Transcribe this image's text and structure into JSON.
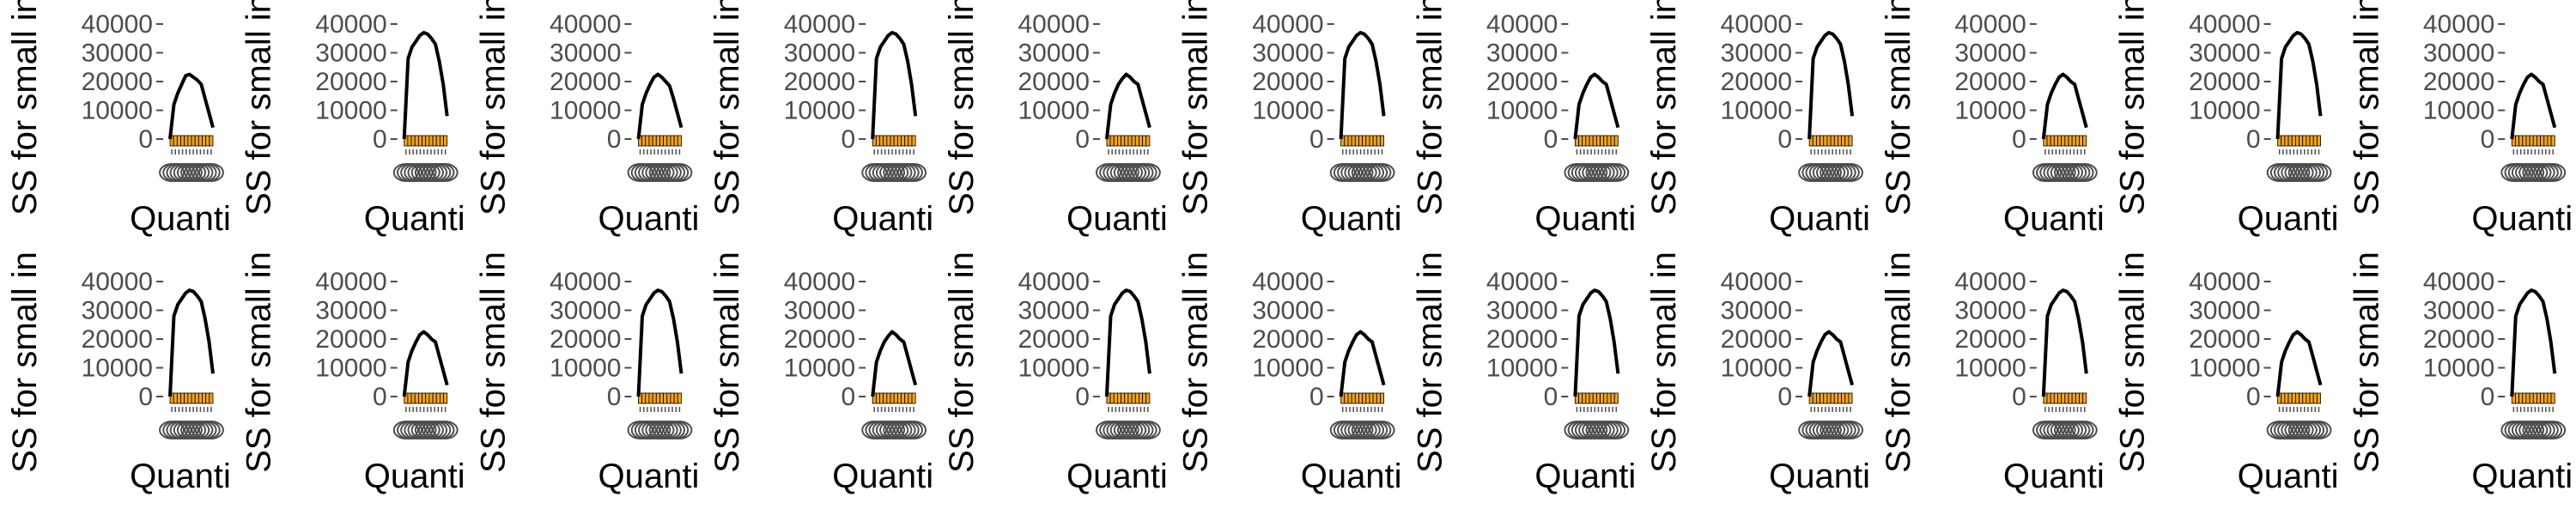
{
  "chart_data": {
    "type": "line",
    "layout": "small-multiples",
    "rows": 2,
    "cols": 11,
    "xlabel": "Quanti",
    "ylabel": "SS for small in",
    "ylim": [
      0,
      40000
    ],
    "yticks": [
      0,
      10000,
      20000,
      30000,
      40000
    ],
    "ytick_labels": [
      "0",
      "10000",
      "20000",
      "30000",
      "40000"
    ],
    "x_ticks_count": 12,
    "panels": [
      {
        "values": [
          0,
          12000,
          16000,
          19000,
          22000,
          22500,
          21500,
          20500,
          19000,
          14000,
          9000,
          4000
        ],
        "bars": 12,
        "bar_value": 600
      },
      {
        "values": [
          0,
          28000,
          32000,
          34000,
          36000,
          37000,
          36500,
          35000,
          33000,
          27000,
          19000,
          8000
        ],
        "bars": 12,
        "bar_value": 600
      },
      {
        "values": [
          0,
          12000,
          16000,
          19000,
          21500,
          22500,
          21500,
          20000,
          18500,
          14000,
          9000,
          4000
        ],
        "bars": 12,
        "bar_value": 600
      },
      {
        "values": [
          0,
          28000,
          32000,
          34000,
          36000,
          37000,
          36500,
          35000,
          33000,
          27000,
          19000,
          8000
        ],
        "bars": 12,
        "bar_value": 600
      },
      {
        "values": [
          0,
          12000,
          16000,
          19000,
          21000,
          22500,
          21500,
          20000,
          19000,
          14000,
          9000,
          4000
        ],
        "bars": 12,
        "bar_value": 600
      },
      {
        "values": [
          0,
          28000,
          32000,
          34000,
          36000,
          37000,
          36500,
          35000,
          33000,
          27000,
          19000,
          8000
        ],
        "bars": 12,
        "bar_value": 600
      },
      {
        "values": [
          0,
          12000,
          16000,
          19000,
          21500,
          22500,
          21500,
          20000,
          19000,
          14000,
          9000,
          4000
        ],
        "bars": 12,
        "bar_value": 600
      },
      {
        "values": [
          0,
          28000,
          32000,
          34000,
          36000,
          37000,
          36500,
          35000,
          33000,
          27000,
          19000,
          8000
        ],
        "bars": 12,
        "bar_value": 600
      },
      {
        "values": [
          0,
          12000,
          16000,
          19000,
          21500,
          22500,
          21500,
          20000,
          19000,
          14000,
          9000,
          4000
        ],
        "bars": 12,
        "bar_value": 600
      },
      {
        "values": [
          0,
          28000,
          32000,
          34000,
          36000,
          37000,
          36500,
          35000,
          33000,
          27000,
          19000,
          8000
        ],
        "bars": 12,
        "bar_value": 600
      },
      {
        "values": [
          0,
          12000,
          16000,
          19000,
          21500,
          22500,
          21500,
          20000,
          19000,
          14000,
          9000,
          4000
        ],
        "bars": 12,
        "bar_value": 600
      },
      {
        "values": [
          0,
          28000,
          32000,
          34000,
          36000,
          37000,
          36500,
          35000,
          33000,
          27000,
          19000,
          8000
        ],
        "bars": 12,
        "bar_value": 600
      },
      {
        "values": [
          0,
          12000,
          16000,
          19000,
          21500,
          22500,
          21500,
          20000,
          19000,
          14000,
          9000,
          4000
        ],
        "bars": 12,
        "bar_value": 600
      },
      {
        "values": [
          0,
          28000,
          32000,
          34000,
          36000,
          37000,
          36500,
          35000,
          33000,
          27000,
          19000,
          8000
        ],
        "bars": 12,
        "bar_value": 600
      },
      {
        "values": [
          0,
          12000,
          16000,
          19000,
          21000,
          22500,
          21500,
          20000,
          19000,
          14000,
          9000,
          4000
        ],
        "bars": 12,
        "bar_value": 600
      },
      {
        "values": [
          0,
          28000,
          32000,
          34000,
          36000,
          37000,
          36500,
          35000,
          33000,
          27000,
          19000,
          8000
        ],
        "bars": 12,
        "bar_value": 600
      },
      {
        "values": [
          0,
          12000,
          16000,
          19000,
          21500,
          22500,
          21500,
          20000,
          19000,
          14000,
          9000,
          4000
        ],
        "bars": 12,
        "bar_value": 600
      },
      {
        "values": [
          0,
          28000,
          32000,
          34000,
          36000,
          37000,
          36500,
          35000,
          33000,
          27000,
          19000,
          8000
        ],
        "bars": 12,
        "bar_value": 600
      },
      {
        "values": [
          0,
          12000,
          16000,
          19000,
          21500,
          22500,
          21500,
          20000,
          19000,
          14000,
          9000,
          4000
        ],
        "bars": 12,
        "bar_value": 600
      },
      {
        "values": [
          0,
          28000,
          32000,
          34000,
          36000,
          37000,
          36500,
          35000,
          33000,
          27000,
          19000,
          8000
        ],
        "bars": 12,
        "bar_value": 600
      },
      {
        "values": [
          0,
          12000,
          16000,
          19000,
          21500,
          22500,
          21500,
          20000,
          19000,
          14000,
          9000,
          4000
        ],
        "bars": 12,
        "bar_value": 600
      },
      {
        "values": [
          0,
          28000,
          32000,
          34000,
          36000,
          37000,
          36500,
          35000,
          33000,
          27000,
          19000,
          8000
        ],
        "bars": 12,
        "bar_value": 600
      }
    ],
    "colors": {
      "line": "#000000",
      "bar_fill": "#f2a31b",
      "bar_stroke": "#000000",
      "tick": "#4d4d4d"
    }
  }
}
